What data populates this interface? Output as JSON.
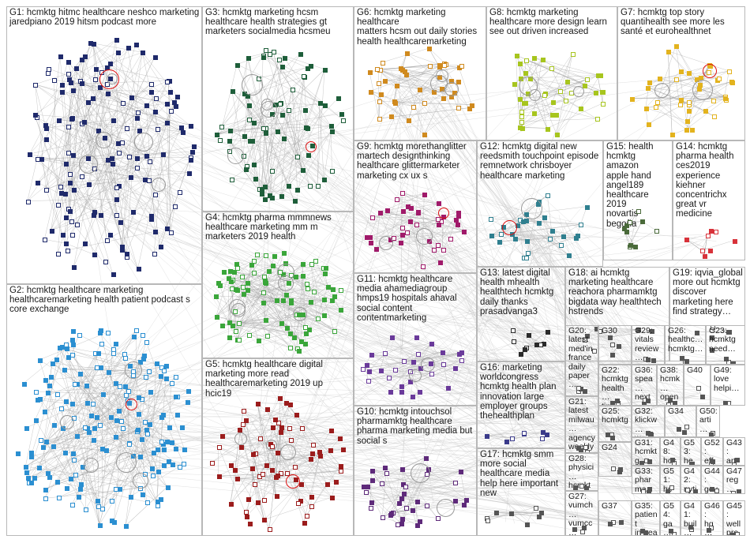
{
  "groups": [
    {
      "id": "G1",
      "label": "G1: hcmktg hitmc healthcare neshco marketing\njaredpiano 2019 hitsm podcast more",
      "color": "#1f2a6b",
      "nodes": 160
    },
    {
      "id": "G2",
      "label": "G2: hcmktg healthcare marketing\nhealthcaremarketing health patient podcast s\ncore exchange",
      "color": "#2b8fd1",
      "nodes": 190
    },
    {
      "id": "G3",
      "label": "G3: hcmktg marketing hcsm\nhealthcare health strategies gt\nmarketers socialmedia hcsmeu",
      "color": "#1e5e3a",
      "nodes": 80
    },
    {
      "id": "G4",
      "label": "G4: hcmktg pharma mmmnews\nhealthcare marketing mm m\nmarketers 2019 health",
      "color": "#3aa63a",
      "nodes": 95
    },
    {
      "id": "G5",
      "label": "G5: hcmktg healthcare digital\nmarketing more read\nhealthcaremarketing 2019 up hcic19",
      "color": "#9b1c1c",
      "nodes": 75
    },
    {
      "id": "G6",
      "label": "G6: hcmktg marketing healthcare\nmatters hcsm out daily stories\nhealth healthcaremarketing",
      "color": "#d08a1e",
      "nodes": 45
    },
    {
      "id": "G7",
      "label": "G7: hcmktg top story\nquantihealth see more les\nsanté et eurohealthnet",
      "color": "#e3b31e",
      "nodes": 40
    },
    {
      "id": "G8",
      "label": "G8: hcmktg marketing\nhealthcare more design learn\nsee out driven increased",
      "color": "#a7c51e",
      "nodes": 42
    },
    {
      "id": "G9",
      "label": "G9: hcmktg morethanglitter\nmartech designthinking\nhealthcare glittermarketer\nmarketing cx ux s",
      "color": "#a01a6a",
      "nodes": 40
    },
    {
      "id": "G10",
      "label": "G10: hcmktg intouchsol\npharmamktg healthcare\npharma marketing media but\nsocial s",
      "color": "#5e2a7a",
      "nodes": 38
    },
    {
      "id": "G11",
      "label": "G11: hcmktg healthcare\nmedia ahamediagroup\nhmps19 hospitals ahaval\nsocial content\ncontentmarketing",
      "color": "#6a3a9a",
      "nodes": 32
    },
    {
      "id": "G12",
      "label": "G12: hcmktg digital new\nreedsmith touchpoint episode\nremnetwork chrisboyer\nhealthcare marketing",
      "color": "#2f7f8f",
      "nodes": 30
    },
    {
      "id": "G13",
      "label": "G13: latest digital\nhealth mhealth\nhealthtech hcmktg\ndaily thanks\nprasadvanga3",
      "color": "#2a2a2a",
      "nodes": 10
    },
    {
      "id": "G14",
      "label": "G14: hcmktg\npharma health\nces2019\nexperience\nkiehner\nconcentrichx\ngreat vr\nmedicine",
      "color": "#d8323a",
      "nodes": 8
    },
    {
      "id": "G15",
      "label": "G15: health\nhcmktg amazon\napple hand\nangel189\nhealthcare 2019\nnovartis begoña",
      "color": "#4a6a3a",
      "nodes": 10
    },
    {
      "id": "G16",
      "label": "G16: marketing\nworldcongress\nhcmktg health plan\ninnovation large\nemployer groups\nthehealthplan",
      "color": "#3a3a8a",
      "nodes": 8
    },
    {
      "id": "G17",
      "label": "G17: hcmktg smm\nmore social\nhealthcare media\nhelp here important\nnew",
      "color": "#555",
      "nodes": 8
    },
    {
      "id": "G18",
      "label": "G18: ai hcmktg\nmarketing healthcare\nreachora pharmamktg\nbigdata way healthtech\nhstrends",
      "color": "#555",
      "nodes": 8
    },
    {
      "id": "G19",
      "label": "G19: iqvia_global\nmore out hcmktg\ndiscover\nmarketing here\nfind strategy…",
      "color": "#555",
      "nodes": 6
    },
    {
      "id": "G20",
      "label": "G20:\nlatest\nmed'in\nfrance\ndaily\npaper…",
      "color": "#555",
      "nodes": 4
    },
    {
      "id": "G21",
      "label": "G21:\nlatest\nmilwau…\nagency\nweekly…",
      "color": "#555",
      "nodes": 4
    },
    {
      "id": "G22",
      "label": "G22:\nhcmktg\nhealth…\ntips…",
      "color": "#555",
      "nodes": 3
    },
    {
      "id": "G23",
      "label": "G23:\nhcmktg\nneed…",
      "color": "#555",
      "nodes": 3
    },
    {
      "id": "G24",
      "label": "G24",
      "color": "#555",
      "nodes": 3
    },
    {
      "id": "G25",
      "label": "G25:\nhcmktg",
      "color": "#555",
      "nodes": 3
    },
    {
      "id": "G26",
      "label": "G26:\nhealthc…\nhcmktg…",
      "color": "#555",
      "nodes": 3
    },
    {
      "id": "G27",
      "label": "G27:\nvumch…\nvumcc…",
      "color": "#555",
      "nodes": 3
    },
    {
      "id": "G28",
      "label": "G28:\nphysici…\nhcmkt…",
      "color": "#555",
      "nodes": 3
    },
    {
      "id": "G29",
      "label": "G29:\nvitals\nreview…",
      "color": "#555",
      "nodes": 3
    },
    {
      "id": "G30",
      "label": "G30",
      "color": "#555",
      "nodes": 3
    },
    {
      "id": "G31",
      "label": "G31:\nhcmktg\nteam…",
      "color": "#555",
      "nodes": 3
    },
    {
      "id": "G32",
      "label": "G32:\nklickw…\nw…",
      "color": "#555",
      "nodes": 3
    },
    {
      "id": "G33",
      "label": "G33:\npharma\nhcmkt…",
      "color": "#555",
      "nodes": 3
    },
    {
      "id": "G34",
      "label": "G34",
      "color": "#555",
      "nodes": 3
    },
    {
      "id": "G35",
      "label": "G35:\npatient\nincrea…",
      "color": "#555",
      "nodes": 3
    },
    {
      "id": "G36",
      "label": "G36:\nspea…\nnext…",
      "color": "#555",
      "nodes": 3
    },
    {
      "id": "G37",
      "label": "G37",
      "color": "#555",
      "nodes": 3
    },
    {
      "id": "G38",
      "label": "G38:\nhcmk…\nopen…",
      "color": "#555",
      "nodes": 3
    },
    {
      "id": "G40",
      "label": "G40",
      "color": "#555",
      "nodes": 2
    },
    {
      "id": "G41",
      "label": "G41:\nbuil…",
      "color": "#555",
      "nodes": 2
    },
    {
      "id": "G42",
      "label": "G42:\nnyti…",
      "color": "#555",
      "nodes": 2
    },
    {
      "id": "G43",
      "label": "G43:\nart…\nhc…",
      "color": "#555",
      "nodes": 2
    },
    {
      "id": "G45",
      "label": "G45:\nwell\npro…",
      "color": "#555",
      "nodes": 2
    },
    {
      "id": "G46",
      "label": "G46:\nhg…",
      "color": "#555",
      "nodes": 2
    },
    {
      "id": "G47",
      "label": "G47\nreg…",
      "color": "#555",
      "nodes": 2
    },
    {
      "id": "G48",
      "label": "G48:\nhos…\nhar…",
      "color": "#555",
      "nodes": 2
    },
    {
      "id": "G49",
      "label": "G49:\nlove\nhelpi…",
      "color": "#555",
      "nodes": 2
    },
    {
      "id": "G50",
      "label": "G50:\narti…",
      "color": "#555",
      "nodes": 2
    },
    {
      "id": "G51",
      "label": "G51:\nhc…\nhits…",
      "color": "#555",
      "nodes": 2
    },
    {
      "id": "G52",
      "label": "G52:\neff…\nsto…",
      "color": "#555",
      "nodes": 2
    },
    {
      "id": "G53",
      "label": "G53:\nhe…\nhc…",
      "color": "#555",
      "nodes": 2
    },
    {
      "id": "G54",
      "label": "G54:\nga…\nbuil…",
      "color": "#555",
      "nodes": 2
    },
    {
      "id": "G44",
      "label": "G44:\ngov…\nhcm…",
      "color": "#555",
      "nodes": 2
    }
  ]
}
